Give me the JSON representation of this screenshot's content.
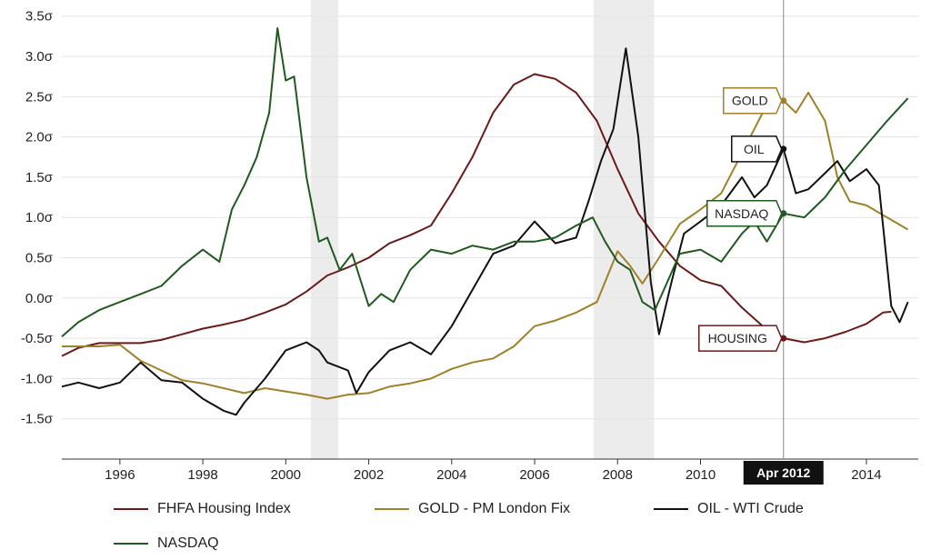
{
  "chart_data": {
    "type": "line",
    "title": "",
    "xlabel": "",
    "ylabel": "",
    "xlim": [
      1994.6,
      2015.25
    ],
    "ylim": [
      -2.0,
      3.7
    ],
    "y_ticks": [
      -1.5,
      -1.0,
      -0.5,
      0.0,
      0.5,
      1.0,
      1.5,
      2.0,
      2.5,
      3.0,
      3.5
    ],
    "y_tick_labels": [
      "-1.5σ",
      "-1.0σ",
      "-0.5σ",
      "0.0σ",
      "0.5σ",
      "1.0σ",
      "1.5σ",
      "2.0σ",
      "2.5σ",
      "3.0σ",
      "3.5σ"
    ],
    "x_ticks": [
      1996,
      1998,
      2000,
      2002,
      2004,
      2006,
      2008,
      2010,
      2014
    ],
    "x_tick_labels": [
      "1996",
      "1998",
      "2000",
      "2002",
      "2004",
      "2006",
      "2008",
      "2010",
      "2014"
    ],
    "recessions": [
      [
        2000.6,
        2001.27
      ],
      [
        2007.42,
        2008.88
      ]
    ],
    "crosshair": {
      "x": 2012.0,
      "label": "Apr 2012"
    },
    "series": [
      {
        "name": "FHFA Housing Index",
        "color": "#6b1a1a",
        "callout": "HOUSING",
        "callout_value": -0.5,
        "x": [
          1994.6,
          1995.0,
          1995.5,
          1996.0,
          1996.5,
          1997.0,
          1997.5,
          1998.0,
          1998.5,
          1999.0,
          1999.5,
          2000.0,
          2000.5,
          2001.0,
          2001.5,
          2002.0,
          2002.5,
          2003.0,
          2003.5,
          2004.0,
          2004.5,
          2005.0,
          2005.5,
          2006.0,
          2006.5,
          2007.0,
          2007.5,
          2008.0,
          2008.5,
          2009.0,
          2009.5,
          2010.0,
          2010.5,
          2011.0,
          2011.5,
          2012.0,
          2012.5,
          2013.0,
          2013.5,
          2014.0,
          2014.4,
          2014.6
        ],
        "y": [
          -0.72,
          -0.62,
          -0.56,
          -0.56,
          -0.56,
          -0.52,
          -0.45,
          -0.38,
          -0.33,
          -0.27,
          -0.18,
          -0.08,
          0.08,
          0.28,
          0.38,
          0.5,
          0.68,
          0.78,
          0.9,
          1.3,
          1.75,
          2.3,
          2.65,
          2.78,
          2.72,
          2.55,
          2.2,
          1.6,
          1.05,
          0.7,
          0.4,
          0.22,
          0.15,
          -0.12,
          -0.35,
          -0.5,
          -0.55,
          -0.5,
          -0.42,
          -0.32,
          -0.18,
          -0.17
        ]
      },
      {
        "name": "GOLD - PM London Fix",
        "color": "#a08028",
        "callout": "GOLD",
        "callout_value": 2.45,
        "x": [
          1994.6,
          1995.0,
          1995.5,
          1996.0,
          1996.5,
          1997.0,
          1997.5,
          1998.0,
          1998.5,
          1999.0,
          1999.5,
          2000.0,
          2000.5,
          2001.0,
          2001.5,
          2002.0,
          2002.5,
          2003.0,
          2003.5,
          2004.0,
          2004.5,
          2005.0,
          2005.5,
          2006.0,
          2006.5,
          2007.0,
          2007.5,
          2008.0,
          2008.3,
          2008.6,
          2009.0,
          2009.5,
          2010.0,
          2010.5,
          2011.0,
          2011.5,
          2011.8,
          2012.0,
          2012.3,
          2012.6,
          2013.0,
          2013.3,
          2013.6,
          2014.0,
          2014.5,
          2015.0
        ],
        "y": [
          -0.6,
          -0.6,
          -0.6,
          -0.58,
          -0.78,
          -0.9,
          -1.02,
          -1.06,
          -1.12,
          -1.18,
          -1.12,
          -1.16,
          -1.2,
          -1.25,
          -1.2,
          -1.18,
          -1.1,
          -1.06,
          -1.0,
          -0.88,
          -0.8,
          -0.75,
          -0.6,
          -0.35,
          -0.28,
          -0.18,
          -0.05,
          0.58,
          0.4,
          0.18,
          0.5,
          0.92,
          1.1,
          1.3,
          1.8,
          2.3,
          2.5,
          2.45,
          2.3,
          2.55,
          2.2,
          1.5,
          1.2,
          1.15,
          1.0,
          0.85
        ]
      },
      {
        "name": "OIL - WTI Crude",
        "color": "#111111",
        "callout": "OIL",
        "callout_value": 1.85,
        "x": [
          1994.6,
          1995.0,
          1995.5,
          1996.0,
          1996.5,
          1997.0,
          1997.5,
          1998.0,
          1998.5,
          1998.8,
          1999.0,
          1999.5,
          2000.0,
          2000.5,
          2000.8,
          2001.0,
          2001.5,
          2001.7,
          2002.0,
          2002.5,
          2003.0,
          2003.5,
          2004.0,
          2004.5,
          2005.0,
          2005.5,
          2006.0,
          2006.5,
          2007.0,
          2007.3,
          2007.6,
          2007.9,
          2008.2,
          2008.5,
          2008.8,
          2009.0,
          2009.3,
          2009.6,
          2010.0,
          2010.5,
          2011.0,
          2011.3,
          2011.6,
          2012.0,
          2012.3,
          2012.6,
          2013.0,
          2013.3,
          2013.6,
          2014.0,
          2014.3,
          2014.6,
          2014.8,
          2015.0
        ],
        "y": [
          -1.1,
          -1.05,
          -1.12,
          -1.05,
          -0.8,
          -1.02,
          -1.05,
          -1.25,
          -1.4,
          -1.45,
          -1.3,
          -1.0,
          -0.65,
          -0.55,
          -0.65,
          -0.8,
          -0.9,
          -1.18,
          -0.92,
          -0.65,
          -0.55,
          -0.7,
          -0.35,
          0.1,
          0.55,
          0.65,
          0.95,
          0.68,
          0.75,
          1.2,
          1.7,
          2.1,
          3.1,
          2.0,
          0.2,
          -0.45,
          0.2,
          0.8,
          0.95,
          1.15,
          1.5,
          1.25,
          1.4,
          1.85,
          1.3,
          1.35,
          1.55,
          1.7,
          1.45,
          1.6,
          1.4,
          -0.1,
          -0.3,
          -0.05
        ]
      },
      {
        "name": "NASDAQ",
        "color": "#1f5a1f",
        "callout": "NASDAQ",
        "callout_value": 1.05,
        "x": [
          1994.6,
          1995.0,
          1995.5,
          1996.0,
          1996.5,
          1997.0,
          1997.5,
          1998.0,
          1998.4,
          1998.7,
          1999.0,
          1999.3,
          1999.6,
          1999.8,
          2000.0,
          2000.2,
          2000.5,
          2000.8,
          2001.0,
          2001.3,
          2001.6,
          2002.0,
          2002.3,
          2002.6,
          2003.0,
          2003.5,
          2004.0,
          2004.5,
          2005.0,
          2005.5,
          2006.0,
          2006.5,
          2007.0,
          2007.4,
          2007.7,
          2008.0,
          2008.3,
          2008.6,
          2008.9,
          2009.2,
          2009.5,
          2010.0,
          2010.5,
          2011.0,
          2011.3,
          2011.6,
          2012.0,
          2012.5,
          2013.0,
          2013.5,
          2014.0,
          2014.5,
          2015.0
        ],
        "y": [
          -0.48,
          -0.3,
          -0.15,
          -0.05,
          0.05,
          0.15,
          0.4,
          0.6,
          0.45,
          1.1,
          1.4,
          1.75,
          2.3,
          3.35,
          2.7,
          2.75,
          1.5,
          0.7,
          0.75,
          0.35,
          0.55,
          -0.1,
          0.05,
          -0.05,
          0.35,
          0.6,
          0.55,
          0.65,
          0.6,
          0.7,
          0.7,
          0.75,
          0.9,
          1.0,
          0.7,
          0.45,
          0.35,
          -0.05,
          -0.15,
          0.2,
          0.55,
          0.6,
          0.45,
          0.8,
          0.95,
          0.7,
          1.05,
          1.0,
          1.25,
          1.6,
          1.9,
          2.2,
          2.48
        ]
      }
    ]
  },
  "legend": {
    "housing": "FHFA Housing Index",
    "gold": "GOLD - PM London Fix",
    "oil": "OIL - WTI Crude",
    "nasdaq": "NASDAQ"
  }
}
